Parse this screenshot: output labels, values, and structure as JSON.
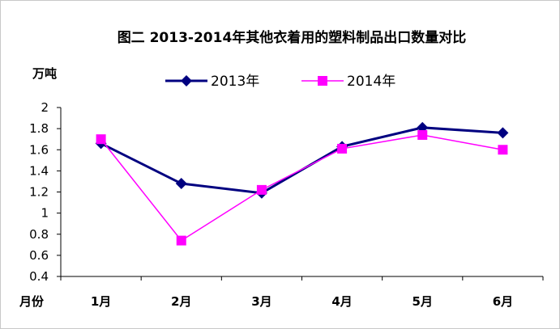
{
  "chart_data": {
    "type": "line",
    "title": "图二   2013-2014年其他衣着用的塑料制品出口数量对比",
    "ylabel": "万吨",
    "xlabel": "月份",
    "categories": [
      "1月",
      "2月",
      "3月",
      "4月",
      "5月",
      "6月"
    ],
    "ylim": [
      0.4,
      2
    ],
    "yticks": [
      "2",
      "1.8",
      "1.6",
      "1.4",
      "1.2",
      "1",
      "0.8",
      "0.6",
      "0.4"
    ],
    "ytick_values": [
      2,
      1.8,
      1.6,
      1.4,
      1.2,
      1.0,
      0.8,
      0.6,
      0.4
    ],
    "grid": false,
    "legend_position": "top",
    "series": [
      {
        "name": "2013年",
        "values": [
          1.66,
          1.28,
          1.19,
          1.63,
          1.81,
          1.76
        ],
        "color": "#000080",
        "marker": "diamond"
      },
      {
        "name": "2014年",
        "values": [
          1.7,
          0.74,
          1.22,
          1.61,
          1.74,
          1.6
        ],
        "color": "#ff00ff",
        "marker": "square"
      }
    ]
  }
}
